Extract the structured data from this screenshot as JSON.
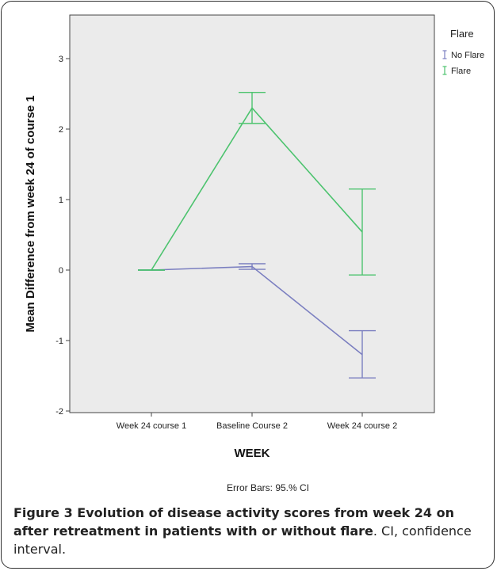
{
  "chart_data": {
    "type": "line",
    "categories": [
      "Week 24 course 1",
      "Baseline Course 2",
      "Week 24 course 2"
    ],
    "xlabel": "WEEK",
    "ylabel": "Mean Difference from week 24 of course 1",
    "ylim": [
      -2,
      3.5
    ],
    "yticks": [
      "3",
      "2",
      "1",
      "0",
      "-1",
      "-2"
    ],
    "legend_title": "Flare",
    "legend_position": "right",
    "series": [
      {
        "name": "No Flare",
        "color": "#7B7FC0",
        "mean": [
          0,
          0.05,
          -1.2
        ],
        "ci_low": [
          0,
          0.01,
          -1.53
        ],
        "ci_high": [
          0,
          0.09,
          -0.86
        ]
      },
      {
        "name": "Flare",
        "color": "#4CC36E",
        "mean": [
          0,
          2.3,
          0.54
        ],
        "ci_low": [
          0,
          2.08,
          -0.07
        ],
        "ci_high": [
          0,
          2.52,
          1.15
        ]
      }
    ],
    "footnote": "Error Bars: 95.% CI",
    "plot_bg": "#EBEBEB"
  },
  "caption": {
    "bold": "Figure 3 Evolution of disease activity scores from week 24 on after retreatment in patients with or without flare",
    "rest": ". CI, confidence interval."
  }
}
